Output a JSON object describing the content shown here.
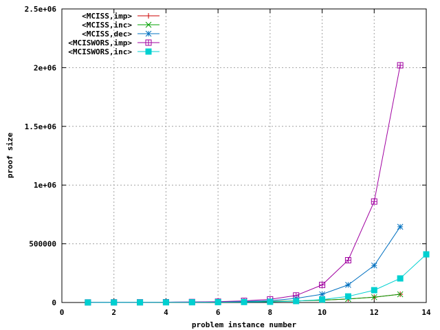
{
  "chart_data": {
    "type": "line",
    "xlabel": "problem instance number",
    "ylabel": "proof size",
    "xlim": [
      0,
      14
    ],
    "ylim": [
      0,
      2500000
    ],
    "x_ticks": [
      0,
      2,
      4,
      6,
      8,
      10,
      12,
      14
    ],
    "x_tick_labels": [
      "0",
      "2",
      "4",
      "6",
      "8",
      "10",
      "12",
      "14"
    ],
    "y_ticks": [
      0,
      500000,
      1000000,
      1500000,
      2000000,
      2500000
    ],
    "y_tick_labels": [
      "0",
      "500000",
      "1e+06",
      "1.5e+06",
      "2e+06",
      "2.5e+06"
    ],
    "grid": true,
    "legend_position": "top-left",
    "series": [
      {
        "name": "<MCISS,imp>",
        "color": "#cc0000",
        "marker": "plus",
        "x": [
          1,
          2,
          3,
          4,
          5,
          6,
          7,
          8,
          9,
          10,
          11,
          12,
          13
        ],
        "y": [
          500,
          800,
          1200,
          2000,
          3000,
          4000,
          6000,
          9000,
          13000,
          20000,
          30000,
          45000,
          70000
        ]
      },
      {
        "name": "<MCISS,inc>",
        "color": "#00a000",
        "marker": "cross",
        "x": [
          1,
          2,
          3,
          4,
          5,
          6,
          7,
          8,
          9,
          10,
          11,
          12,
          13
        ],
        "y": [
          500,
          800,
          1200,
          2000,
          3000,
          4000,
          6000,
          9000,
          13000,
          20000,
          30000,
          45000,
          70000
        ]
      },
      {
        "name": "<MCISS,dec>",
        "color": "#0070c0",
        "marker": "star",
        "x": [
          1,
          2,
          3,
          4,
          5,
          6,
          7,
          8,
          9,
          10,
          11,
          12,
          13
        ],
        "y": [
          1000,
          1500,
          2000,
          3000,
          4000,
          6000,
          9000,
          15000,
          35000,
          70000,
          150000,
          315000,
          645000
        ]
      },
      {
        "name": "<MCISWORS,imp>",
        "color": "#a000a0",
        "marker": "box",
        "x": [
          1,
          2,
          3,
          4,
          5,
          6,
          7,
          8,
          9,
          10,
          11,
          12,
          13
        ],
        "y": [
          1000,
          1500,
          2000,
          3000,
          4500,
          7000,
          14000,
          27000,
          60000,
          150000,
          360000,
          860000,
          2020000
        ]
      },
      {
        "name": "<MCISWORS,inc>",
        "color": "#00d0d0",
        "marker": "filled-box",
        "x": [
          1,
          2,
          3,
          4,
          5,
          6,
          7,
          8,
          9,
          10,
          11,
          12,
          13,
          14
        ],
        "y": [
          500,
          800,
          1000,
          1500,
          2000,
          3000,
          4000,
          6000,
          12000,
          25000,
          52000,
          105000,
          205000,
          410000
        ]
      }
    ]
  }
}
